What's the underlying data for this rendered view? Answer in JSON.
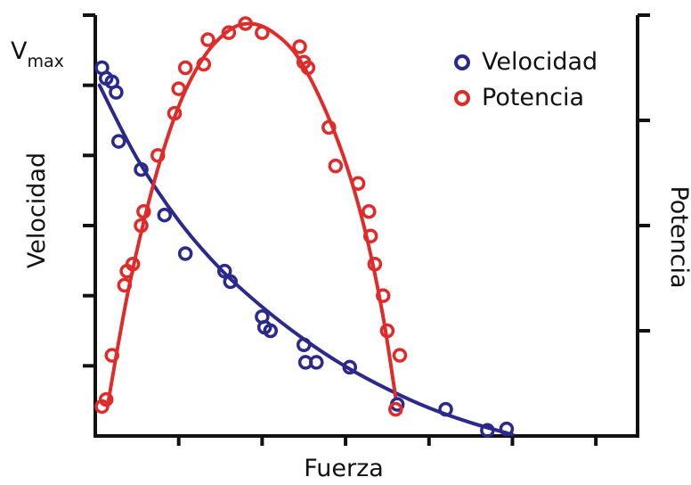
{
  "chart_data": {
    "type": "scatter",
    "xlabel": "Fuerza",
    "ylabel": "Velocidad",
    "y2label": "Potencia",
    "vmax_label": {
      "base": "V",
      "sub": "max"
    },
    "xlim": [
      0,
      6.5
    ],
    "ylim": [
      0,
      6
    ],
    "y2lim": [
      0,
      6
    ],
    "grid": false,
    "legend_position": "top-right",
    "x_ticks": [
      1,
      2,
      3,
      4,
      5,
      6
    ],
    "y_ticks": [
      1,
      2,
      3,
      4,
      5,
      6
    ],
    "y2_ticks": [
      1.5,
      3,
      4.5,
      6
    ],
    "series": [
      {
        "name": "Velocidad",
        "color": "#2b2a8c",
        "axis": "left",
        "points": [
          [
            0.08,
            5.25
          ],
          [
            0.13,
            5.1
          ],
          [
            0.2,
            5.05
          ],
          [
            0.25,
            4.9
          ],
          [
            0.28,
            4.2
          ],
          [
            0.55,
            3.8
          ],
          [
            0.83,
            3.15
          ],
          [
            1.08,
            2.6
          ],
          [
            1.55,
            2.35
          ],
          [
            1.62,
            2.2
          ],
          [
            2.0,
            1.7
          ],
          [
            2.03,
            1.55
          ],
          [
            2.1,
            1.5
          ],
          [
            2.5,
            1.3
          ],
          [
            2.52,
            1.05
          ],
          [
            2.65,
            1.05
          ],
          [
            3.05,
            0.98
          ],
          [
            3.62,
            0.45
          ],
          [
            4.2,
            0.38
          ],
          [
            4.7,
            0.08
          ],
          [
            4.93,
            0.1
          ]
        ],
        "curve": [
          [
            0.05,
            5.0
          ],
          [
            0.5,
            3.96
          ],
          [
            1.0,
            3.07
          ],
          [
            1.5,
            2.38
          ],
          [
            2.0,
            1.84
          ],
          [
            2.5,
            1.38
          ],
          [
            3.0,
            0.99
          ],
          [
            3.5,
            0.67
          ],
          [
            4.0,
            0.4
          ],
          [
            4.5,
            0.19
          ],
          [
            5.0,
            0.02
          ]
        ]
      },
      {
        "name": "Potencia",
        "color": "#e02b2b",
        "axis": "right",
        "points": [
          [
            0.08,
            0.42
          ],
          [
            0.13,
            0.52
          ],
          [
            0.2,
            1.15
          ],
          [
            0.35,
            2.15
          ],
          [
            0.38,
            2.35
          ],
          [
            0.45,
            2.45
          ],
          [
            0.55,
            3.0
          ],
          [
            0.58,
            3.2
          ],
          [
            0.75,
            4.0
          ],
          [
            0.95,
            4.6
          ],
          [
            1.0,
            4.95
          ],
          [
            1.08,
            5.25
          ],
          [
            1.3,
            5.3
          ],
          [
            1.35,
            5.65
          ],
          [
            1.6,
            5.75
          ],
          [
            1.8,
            5.88
          ],
          [
            2.0,
            5.75
          ],
          [
            2.45,
            5.55
          ],
          [
            2.5,
            5.33
          ],
          [
            2.55,
            5.25
          ],
          [
            2.8,
            4.4
          ],
          [
            2.88,
            3.85
          ],
          [
            3.15,
            3.6
          ],
          [
            3.28,
            3.2
          ],
          [
            3.3,
            2.85
          ],
          [
            3.35,
            2.45
          ],
          [
            3.45,
            2.0
          ],
          [
            3.5,
            1.5
          ],
          [
            3.65,
            1.15
          ],
          [
            3.6,
            0.38
          ]
        ],
        "curve": [
          [
            0.15,
            0.45
          ],
          [
            0.4,
            2.1
          ],
          [
            0.7,
            3.6
          ],
          [
            1.0,
            4.7
          ],
          [
            1.3,
            5.4
          ],
          [
            1.6,
            5.78
          ],
          [
            1.85,
            5.88
          ],
          [
            2.1,
            5.78
          ],
          [
            2.4,
            5.45
          ],
          [
            2.7,
            4.8
          ],
          [
            3.0,
            3.9
          ],
          [
            3.25,
            2.85
          ],
          [
            3.45,
            1.7
          ],
          [
            3.6,
            0.55
          ]
        ]
      }
    ]
  }
}
